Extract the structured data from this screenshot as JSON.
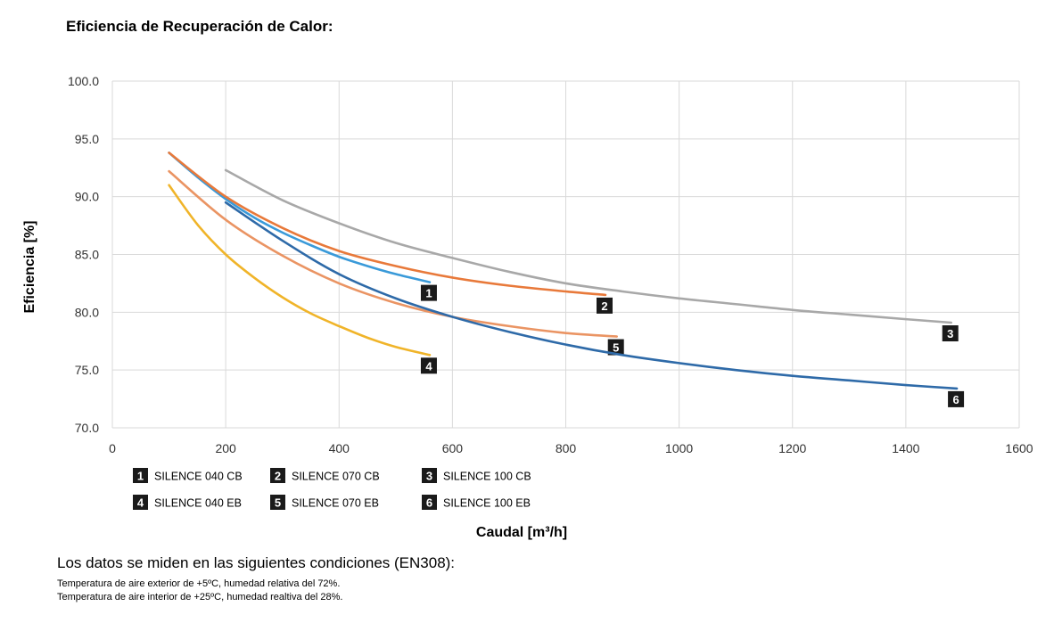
{
  "title": "Eficiencia de Recuperación de Calor:",
  "chart_data": {
    "type": "line",
    "xlabel": "Caudal  [m³/h]",
    "ylabel": "Eficiencia  [%]",
    "xlim": [
      0,
      1600
    ],
    "ylim": [
      70,
      100
    ],
    "xticks": [
      0,
      200,
      400,
      600,
      800,
      1000,
      1200,
      1400,
      1600
    ],
    "yticks": [
      "70.0",
      "75.0",
      "80.0",
      "85.0",
      "90.0",
      "95.0",
      "100.0"
    ],
    "grid": true,
    "legend_position": "bottom-left",
    "series": [
      {
        "marker": "1",
        "name": "SILENCE 040 CB",
        "color": "#3a9ad9",
        "x": [
          100,
          150,
          200,
          250,
          300,
          350,
          400,
          450,
          500,
          560
        ],
        "y": [
          93.8,
          91.7,
          89.8,
          88.2,
          86.9,
          85.8,
          84.8,
          84.0,
          83.3,
          82.6
        ]
      },
      {
        "marker": "2",
        "name": "SILENCE 070 CB",
        "color": "#e8793a",
        "x": [
          100,
          200,
          300,
          400,
          500,
          600,
          700,
          800,
          870
        ],
        "y": [
          93.8,
          90.0,
          87.3,
          85.3,
          84.0,
          83.0,
          82.3,
          81.8,
          81.5
        ]
      },
      {
        "marker": "3",
        "name": "SILENCE 100 CB",
        "color": "#a8a8a8",
        "x": [
          200,
          300,
          400,
          500,
          600,
          700,
          800,
          900,
          1000,
          1100,
          1200,
          1300,
          1400,
          1480
        ],
        "y": [
          92.3,
          89.7,
          87.7,
          86.0,
          84.7,
          83.5,
          82.5,
          81.8,
          81.2,
          80.7,
          80.2,
          79.8,
          79.4,
          79.1
        ]
      },
      {
        "marker": "4",
        "name": "SILENCE 040 EB",
        "color": "#f0b429",
        "x": [
          100,
          150,
          200,
          250,
          300,
          350,
          400,
          450,
          500,
          560
        ],
        "y": [
          91.0,
          87.6,
          85.0,
          83.0,
          81.3,
          79.9,
          78.8,
          77.8,
          77.0,
          76.3
        ]
      },
      {
        "marker": "5",
        "name": "SILENCE 070 EB",
        "color": "#ea9463",
        "x": [
          100,
          200,
          300,
          400,
          500,
          600,
          700,
          800,
          890
        ],
        "y": [
          92.2,
          88.0,
          84.9,
          82.5,
          80.8,
          79.6,
          78.8,
          78.2,
          77.9
        ]
      },
      {
        "marker": "6",
        "name": "SILENCE 100 EB",
        "color": "#2e6aa8",
        "x": [
          200,
          300,
          400,
          500,
          600,
          700,
          800,
          900,
          1000,
          1100,
          1200,
          1300,
          1400,
          1490
        ],
        "y": [
          89.5,
          86.2,
          83.3,
          81.2,
          79.6,
          78.3,
          77.2,
          76.3,
          75.6,
          75.0,
          74.5,
          74.1,
          73.7,
          73.4
        ]
      }
    ]
  },
  "notes": {
    "heading": "Los datos se miden en las siguientes condiciones (EN308):",
    "lines": [
      "Temperatura de aire exterior de +5ºC, humedad relativa del 72%.",
      "Temperatura de aire interior de +25ºC, humedad realtiva del 28%."
    ]
  }
}
